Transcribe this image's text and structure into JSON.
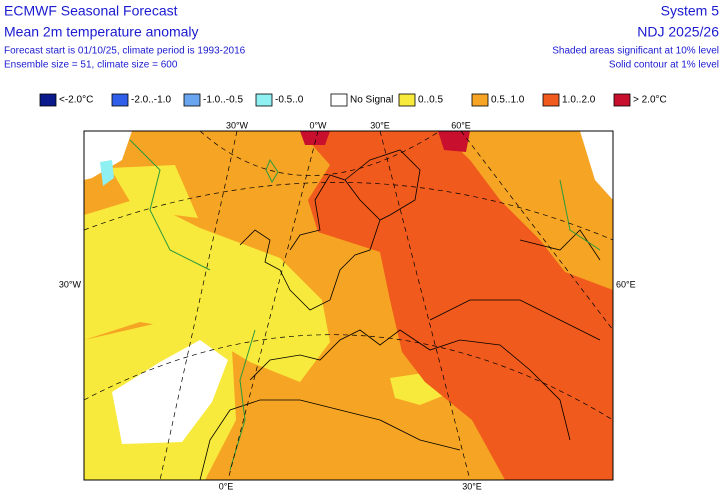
{
  "header": {
    "title": "ECMWF Seasonal Forecast",
    "subtitle": "Mean 2m temperature anomaly",
    "forecast_info": "Forecast start is 01/10/25, climate period is 1993-2016",
    "ensemble_info": "Ensemble size = 51, climate size = 600",
    "system": "System 5",
    "period": "NDJ 2025/26",
    "significance": "Shaded areas significant at 10% level",
    "contour": "Solid contour at 1% level"
  },
  "legend": {
    "items": [
      {
        "label": "<-2.0°C",
        "color": "#0a1a8c"
      },
      {
        "label": "-2.0..-1.0",
        "color": "#2f5fe8"
      },
      {
        "label": "-1.0..-0.5",
        "color": "#6aa6f0"
      },
      {
        "label": "-0.5..0",
        "color": "#8ef0f0"
      },
      {
        "label": "No Signal",
        "color": "#ffffff"
      },
      {
        "label": "0..0.5",
        "color": "#f8ea3c"
      },
      {
        "label": "0.5..1.0",
        "color": "#f6a423"
      },
      {
        "label": "1.0..2.0",
        "color": "#f05a1c"
      },
      {
        "label": "> 2.0°C",
        "color": "#c8102e"
      }
    ]
  },
  "map": {
    "top_labels": [
      "30°W",
      "0°W",
      "30°E",
      "60°E"
    ],
    "left_label": "30°W",
    "right_label": "60°E",
    "bottom_labels": [
      "0°E",
      "30°E"
    ]
  }
}
